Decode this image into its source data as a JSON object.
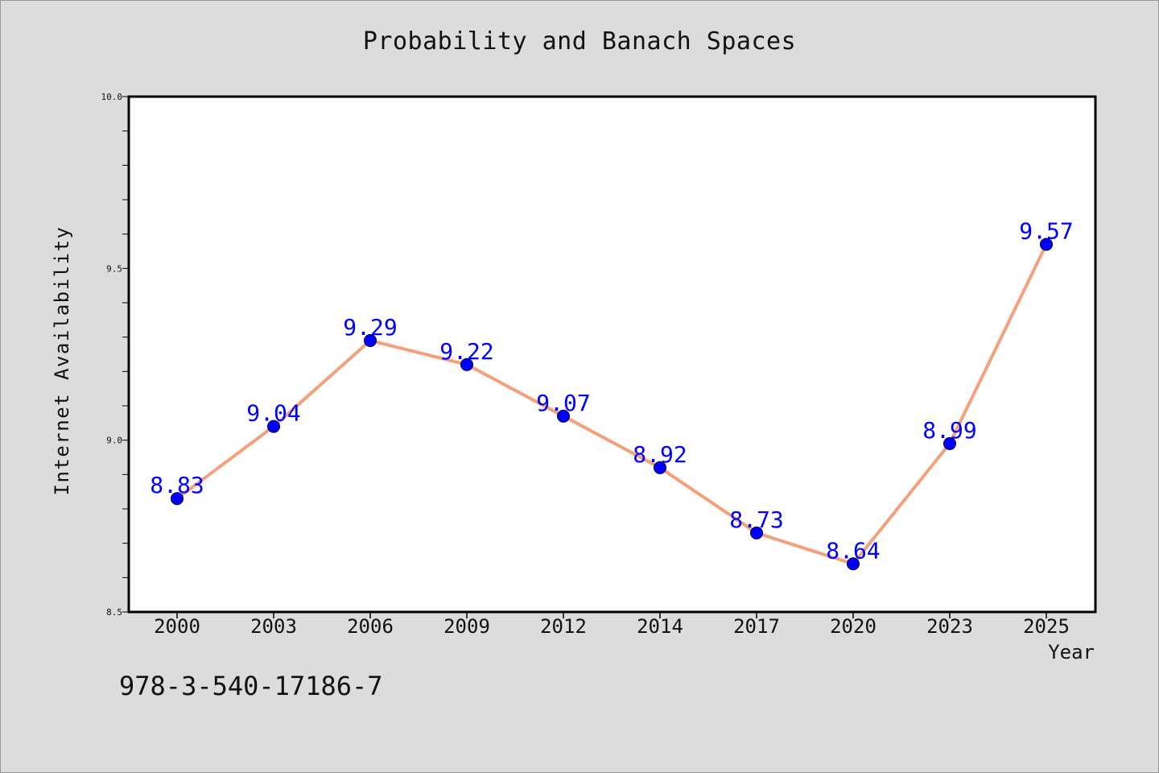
{
  "chart_data": {
    "type": "line",
    "title": "Probability and Banach Spaces",
    "xlabel": "Year",
    "ylabel": "Internet Availability",
    "categories": [
      "2000",
      "2003",
      "2006",
      "2009",
      "2012",
      "2014",
      "2017",
      "2020",
      "2023",
      "2025"
    ],
    "series": [
      {
        "values": [
          8.83,
          9.04,
          9.29,
          9.22,
          9.07,
          8.92,
          8.73,
          8.64,
          8.99,
          9.57
        ],
        "line_color": "#f4a07a",
        "marker_color": "#0000ff",
        "label_color": "#0000ff"
      }
    ],
    "data_labels": [
      "8.83",
      "9.04",
      "9.29",
      "9.22",
      "9.07",
      "8.92",
      "8.73",
      "8.64",
      "8.99",
      "9.57"
    ],
    "ylim": [
      8.5,
      10.0
    ],
    "y_ticks": [
      "8.5",
      "9.0",
      "9.5",
      "10.0"
    ],
    "grid": false,
    "legend": "none"
  },
  "footnote": "978-3-540-17186-7"
}
